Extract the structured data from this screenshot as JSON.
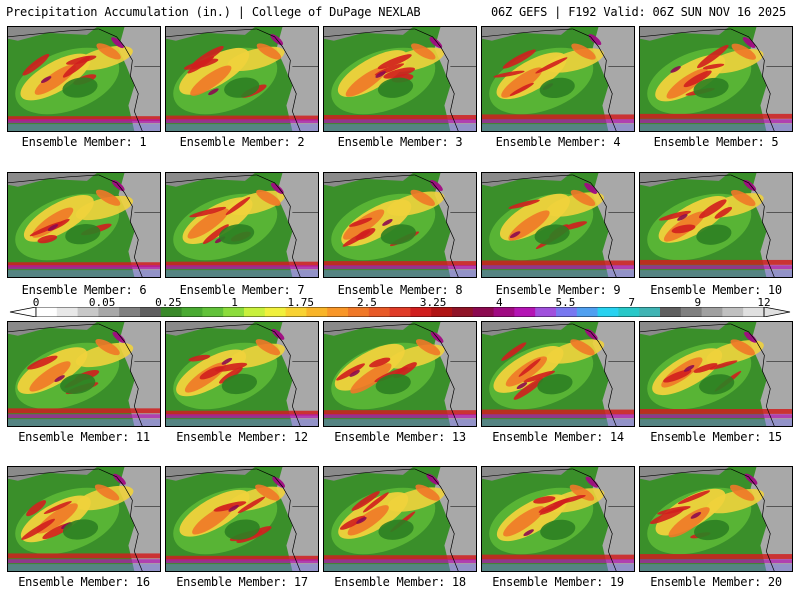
{
  "header": {
    "left": "Precipitation Accumulation (in.) | College of DuPage NEXLAB",
    "right": "06Z GEFS | F192 Valid: 06Z SUN NOV 16 2025"
  },
  "colorbar": {
    "labels": [
      "0",
      "0.05",
      "0.25",
      "1",
      "1.75",
      "2.5",
      "3.25",
      "4",
      "5.5",
      "7",
      "9",
      "12"
    ],
    "colors": [
      "#ffffff",
      "#e8e8e8",
      "#c8c8c8",
      "#a8a8a8",
      "#808080",
      "#606060",
      "#3a8a2a",
      "#4aaa32",
      "#62c23a",
      "#8cdc3c",
      "#c8f03c",
      "#f0f03c",
      "#f8d232",
      "#f8b428",
      "#f89628",
      "#f07828",
      "#e85a28",
      "#e03c28",
      "#d01e1e",
      "#b01414",
      "#901428",
      "#8c0a50",
      "#a00a82",
      "#b414b4",
      "#a050dc",
      "#7878f0",
      "#50a0f0",
      "#28d2f0",
      "#28c8c8",
      "#40b4b4",
      "#606060",
      "#808080",
      "#a0a0a0",
      "#c0c0c0",
      "#e0e0e0"
    ]
  },
  "members": [
    {
      "label": "Ensemble Member: 1"
    },
    {
      "label": "Ensemble Member: 2"
    },
    {
      "label": "Ensemble Member: 3"
    },
    {
      "label": "Ensemble Member: 4"
    },
    {
      "label": "Ensemble Member: 5"
    },
    {
      "label": "Ensemble Member: 6"
    },
    {
      "label": "Ensemble Member: 7"
    },
    {
      "label": "Ensemble Member: 8"
    },
    {
      "label": "Ensemble Member: 9"
    },
    {
      "label": "Ensemble Member: 10"
    },
    {
      "label": "Ensemble Member: 11"
    },
    {
      "label": "Ensemble Member: 12"
    },
    {
      "label": "Ensemble Member: 13"
    },
    {
      "label": "Ensemble Member: 14"
    },
    {
      "label": "Ensemble Member: 15"
    },
    {
      "label": "Ensemble Member: 16"
    },
    {
      "label": "Ensemble Member: 17"
    },
    {
      "label": "Ensemble Member: 18"
    },
    {
      "label": "Ensemble Member: 19"
    },
    {
      "label": "Ensemble Member: 20"
    }
  ]
}
